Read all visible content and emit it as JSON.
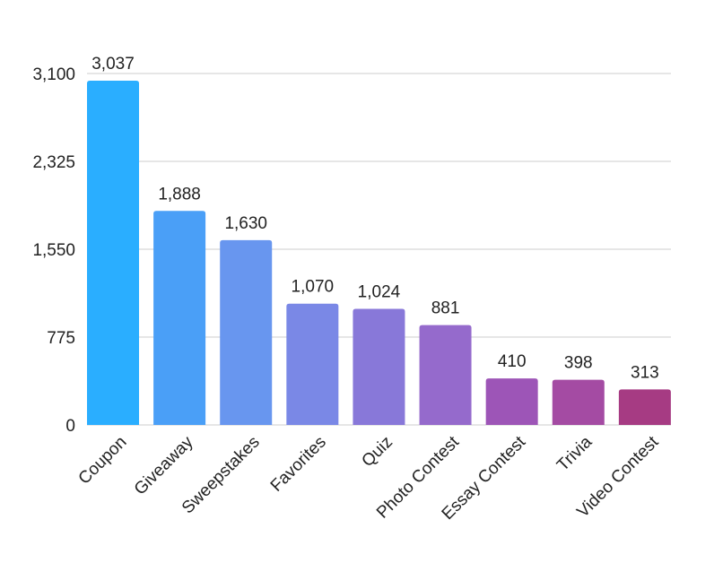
{
  "chart_data": {
    "type": "bar",
    "title": "",
    "xlabel": "",
    "ylabel": "",
    "ylim": [
      0,
      3100
    ],
    "yticks": [
      0,
      775,
      1550,
      2325,
      3100
    ],
    "ytick_labels": [
      "0",
      "775",
      "1,550",
      "2,325",
      "3,100"
    ],
    "grid": true,
    "categories": [
      "Coupon",
      "Giveaway",
      "Sweepstakes",
      "Favorites",
      "Quiz",
      "Photo Contest",
      "Essay Contest",
      "Trivia",
      "Video Contest"
    ],
    "values": [
      3037,
      1888,
      1630,
      1070,
      1024,
      881,
      410,
      398,
      313
    ],
    "value_labels": [
      "3,037",
      "1,888",
      "1,630",
      "1,070",
      "1,024",
      "881",
      "410",
      "398",
      "313"
    ],
    "colors": [
      "#2aaeff",
      "#4a9ff7",
      "#6896ef",
      "#7a88e6",
      "#8878d9",
      "#956acc",
      "#9d55b7",
      "#a44ba3",
      "#a63b83"
    ]
  }
}
